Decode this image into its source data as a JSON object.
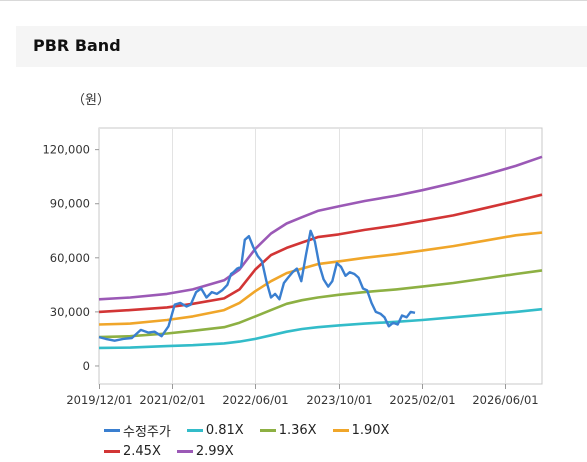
{
  "panel": {
    "title": "PBR Band"
  },
  "chart_data": {
    "type": "line",
    "unit_label": "（원）",
    "ylim": [
      -10000,
      132000
    ],
    "y_ticks": [
      0,
      30000,
      60000,
      90000,
      120000
    ],
    "y_tick_labels": [
      "0",
      "30,000",
      "60,000",
      "90,000",
      "120,000"
    ],
    "xlim": [
      "2019-12-01",
      "2027-01-01"
    ],
    "x_ticks": [
      "2019-12-01",
      "2021-02-01",
      "2022-06-01",
      "2023-10-01",
      "2025-02-01",
      "2026-06-01"
    ],
    "x_tick_labels": [
      "2019/12/01",
      "2021/02/01",
      "2022/06/01",
      "2023/10/01",
      "2025/02/01",
      "2026/06/01"
    ],
    "grid": "vertical",
    "legend_position": "bottom",
    "band_x": [
      "2019-12-01",
      "2020-06-01",
      "2021-01-01",
      "2021-06-01",
      "2021-12-01",
      "2022-03-01",
      "2022-06-01",
      "2022-09-01",
      "2022-12-01",
      "2023-03-01",
      "2023-06-01",
      "2023-10-01",
      "2024-03-01",
      "2024-09-01",
      "2025-02-01",
      "2025-08-01",
      "2026-02-01",
      "2026-08-01",
      "2027-01-01"
    ],
    "series": [
      {
        "name": "수정주가",
        "color": "#3a7fd0",
        "x": [
          "2019-12-01",
          "2020-01-10",
          "2020-03-01",
          "2020-04-20",
          "2020-06-10",
          "2020-08-01",
          "2020-09-15",
          "2020-10-20",
          "2020-12-01",
          "2021-01-10",
          "2021-02-15",
          "2021-03-20",
          "2021-04-25",
          "2021-05-20",
          "2021-06-20",
          "2021-07-20",
          "2021-08-20",
          "2021-09-20",
          "2021-10-20",
          "2021-11-20",
          "2021-12-20",
          "2022-01-10",
          "2022-01-25",
          "2022-02-15",
          "2022-03-10",
          "2022-04-01",
          "2022-04-25",
          "2022-05-20",
          "2022-06-15",
          "2022-07-10",
          "2022-08-05",
          "2022-09-01",
          "2022-09-25",
          "2022-10-20",
          "2022-11-15",
          "2022-12-10",
          "2023-01-05",
          "2023-01-30",
          "2023-02-25",
          "2023-03-25",
          "2023-04-20",
          "2023-05-15",
          "2023-06-10",
          "2023-07-05",
          "2023-08-01",
          "2023-08-25",
          "2023-09-20",
          "2023-10-15",
          "2023-11-10",
          "2023-12-05",
          "2024-01-01",
          "2024-01-25",
          "2024-02-20",
          "2024-03-15",
          "2024-04-10",
          "2024-05-05",
          "2024-06-01",
          "2024-06-25",
          "2024-07-20",
          "2024-08-15",
          "2024-09-10",
          "2024-10-05",
          "2024-11-01",
          "2024-11-25",
          "2024-12-20"
        ],
        "values": [
          16000,
          15000,
          14000,
          15000,
          15500,
          20000,
          18500,
          19000,
          16500,
          22000,
          34000,
          35000,
          33000,
          34000,
          41000,
          43000,
          38000,
          41000,
          40000,
          42000,
          45000,
          51000,
          52000,
          54000,
          55000,
          70000,
          72000,
          66000,
          61000,
          58000,
          47000,
          38000,
          40000,
          37000,
          46000,
          49000,
          52000,
          54000,
          47000,
          62000,
          75000,
          69000,
          56000,
          48000,
          44000,
          47000,
          57000,
          55000,
          50000,
          52000,
          51000,
          49000,
          43000,
          42000,
          35000,
          30000,
          29000,
          27000,
          22000,
          24000,
          23000,
          28000,
          27000,
          30000,
          29500
        ]
      },
      {
        "name": "0.81X",
        "color": "#33bcc9",
        "values": [
          10000,
          10200,
          11000,
          11500,
          12500,
          13500,
          15000,
          17000,
          19000,
          20500,
          21500,
          22500,
          23500,
          24500,
          25500,
          27000,
          28500,
          30000,
          31500
        ]
      },
      {
        "name": "1.36X",
        "color": "#8db043",
        "values": [
          16000,
          16500,
          18000,
          19500,
          21500,
          24000,
          27500,
          31000,
          34500,
          36500,
          38000,
          39500,
          41000,
          42500,
          44000,
          46000,
          48500,
          51000,
          53000
        ]
      },
      {
        "name": "1.90X",
        "color": "#f0a62a",
        "values": [
          23000,
          23500,
          25500,
          27500,
          31000,
          35000,
          41500,
          47000,
          51500,
          54000,
          56500,
          58000,
          60000,
          62000,
          64000,
          66500,
          69500,
          72500,
          74000
        ]
      },
      {
        "name": "2.45X",
        "color": "#d23535",
        "values": [
          30000,
          31000,
          32500,
          34500,
          37500,
          42500,
          53500,
          61500,
          65500,
          68500,
          71500,
          73000,
          75500,
          78000,
          80500,
          83500,
          87500,
          91500,
          95000
        ]
      },
      {
        "name": "2.99X",
        "color": "#9b59b6",
        "values": [
          37000,
          38000,
          40000,
          42500,
          47500,
          53500,
          65000,
          73500,
          79000,
          82500,
          86000,
          88500,
          91500,
          94500,
          97500,
          101500,
          106000,
          111000,
          116000
        ]
      }
    ]
  }
}
